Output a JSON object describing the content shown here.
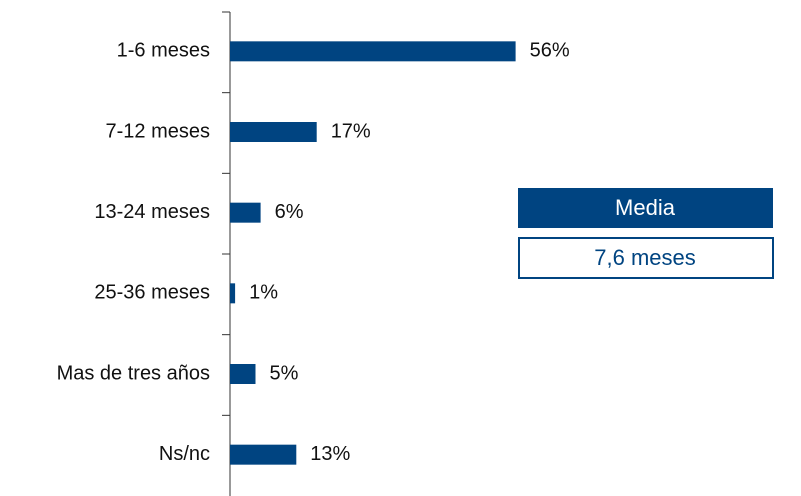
{
  "chart_data": {
    "type": "bar",
    "orientation": "horizontal",
    "categories": [
      "1-6 meses",
      "7-12 meses",
      "13-24 meses",
      "25-36 meses",
      "Mas de tres años",
      "Ns/nc"
    ],
    "values": [
      56,
      17,
      6,
      1,
      5,
      13
    ],
    "value_labels": [
      "56%",
      "17%",
      "6%",
      "1%",
      "5%",
      "13%"
    ],
    "color": "#004481",
    "annotation": {
      "title": "Media",
      "value": "7,6 meses"
    }
  }
}
